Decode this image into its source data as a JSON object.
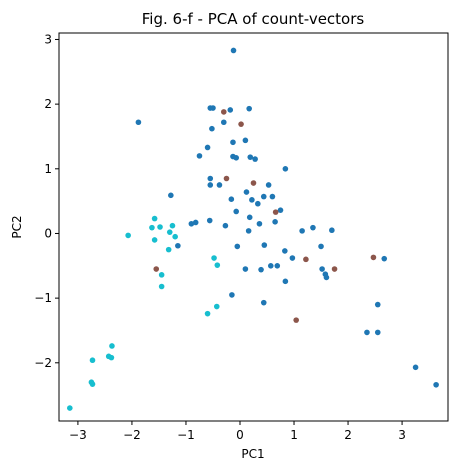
{
  "chart_data": {
    "type": "scatter",
    "title": "Fig. 6-f - PCA of count-vectors",
    "xlabel": "PC1",
    "ylabel": "PC2",
    "xlim": [
      -3.35,
      3.85
    ],
    "ylim": [
      -2.9,
      3.1
    ],
    "xticks": [
      -3,
      -2,
      -1,
      0,
      1,
      2,
      3
    ],
    "yticks": [
      -2,
      -1,
      0,
      1,
      2,
      3
    ],
    "grid": false,
    "series": [
      {
        "color": "#1f77b4",
        "points": [
          [
            -0.12,
            2.83
          ],
          [
            -1.88,
            1.72
          ],
          [
            -0.55,
            1.94
          ],
          [
            -0.5,
            1.94
          ],
          [
            -0.18,
            1.91
          ],
          [
            0.17,
            1.93
          ],
          [
            -0.3,
            1.72
          ],
          [
            -0.52,
            1.62
          ],
          [
            -0.13,
            1.41
          ],
          [
            0.1,
            1.44
          ],
          [
            -0.6,
            1.33
          ],
          [
            -0.75,
            1.2
          ],
          [
            -0.13,
            1.19
          ],
          [
            -0.07,
            1.17
          ],
          [
            0.19,
            1.18
          ],
          [
            0.28,
            1.15
          ],
          [
            0.84,
            1.0
          ],
          [
            -0.55,
            0.85
          ],
          [
            -0.55,
            0.75
          ],
          [
            -0.38,
            0.75
          ],
          [
            0.53,
            0.75
          ],
          [
            0.12,
            0.64
          ],
          [
            0.44,
            0.57
          ],
          [
            0.6,
            0.57
          ],
          [
            -1.28,
            0.59
          ],
          [
            -0.16,
            0.53
          ],
          [
            0.22,
            0.52
          ],
          [
            0.33,
            0.46
          ],
          [
            -0.07,
            0.34
          ],
          [
            0.75,
            0.36
          ],
          [
            0.18,
            0.25
          ],
          [
            -0.56,
            0.2
          ],
          [
            -0.82,
            0.17
          ],
          [
            -0.9,
            0.15
          ],
          [
            0.36,
            0.15
          ],
          [
            0.65,
            0.18
          ],
          [
            -0.27,
            0.12
          ],
          [
            0.16,
            0.04
          ],
          [
            1.15,
            0.04
          ],
          [
            1.35,
            0.09
          ],
          [
            1.7,
            0.05
          ],
          [
            -0.05,
            -0.2
          ],
          [
            0.45,
            -0.18
          ],
          [
            0.83,
            -0.27
          ],
          [
            1.5,
            -0.2
          ],
          [
            -1.15,
            -0.19
          ],
          [
            0.97,
            -0.38
          ],
          [
            0.57,
            -0.5
          ],
          [
            0.69,
            -0.5
          ],
          [
            0.1,
            -0.55
          ],
          [
            0.39,
            -0.56
          ],
          [
            1.52,
            -0.55
          ],
          [
            1.58,
            -0.63
          ],
          [
            0.84,
            -0.74
          ],
          [
            1.6,
            -0.68
          ],
          [
            -0.15,
            -0.95
          ],
          [
            0.44,
            -1.07
          ],
          [
            2.67,
            -0.39
          ],
          [
            2.55,
            -1.1
          ],
          [
            2.35,
            -1.53
          ],
          [
            2.55,
            -1.53
          ],
          [
            3.25,
            -2.07
          ],
          [
            3.63,
            -2.34
          ]
        ]
      },
      {
        "color": "#8c564b",
        "points": [
          [
            -0.3,
            1.88
          ],
          [
            0.02,
            1.69
          ],
          [
            -0.25,
            0.85
          ],
          [
            0.25,
            0.78
          ],
          [
            0.66,
            0.33
          ],
          [
            -1.55,
            -0.55
          ],
          [
            1.22,
            -0.4
          ],
          [
            1.75,
            -0.55
          ],
          [
            2.47,
            -0.37
          ],
          [
            1.04,
            -1.34
          ]
        ]
      },
      {
        "color": "#17becf",
        "points": [
          [
            -1.58,
            0.23
          ],
          [
            -1.63,
            0.09
          ],
          [
            -1.48,
            0.1
          ],
          [
            -1.25,
            0.12
          ],
          [
            -1.3,
            0.02
          ],
          [
            -1.2,
            -0.05
          ],
          [
            -1.58,
            -0.1
          ],
          [
            -2.07,
            -0.03
          ],
          [
            -1.32,
            -0.25
          ],
          [
            -0.48,
            -0.38
          ],
          [
            -0.42,
            -0.49
          ],
          [
            -1.45,
            -0.64
          ],
          [
            -1.45,
            -0.82
          ],
          [
            -0.43,
            -1.13
          ],
          [
            -0.6,
            -1.24
          ],
          [
            -2.37,
            -1.74
          ],
          [
            -2.73,
            -1.96
          ],
          [
            -2.43,
            -1.9
          ],
          [
            -2.38,
            -1.92
          ],
          [
            -2.75,
            -2.3
          ],
          [
            -2.73,
            -2.33
          ],
          [
            -3.15,
            -2.7
          ]
        ]
      }
    ]
  }
}
